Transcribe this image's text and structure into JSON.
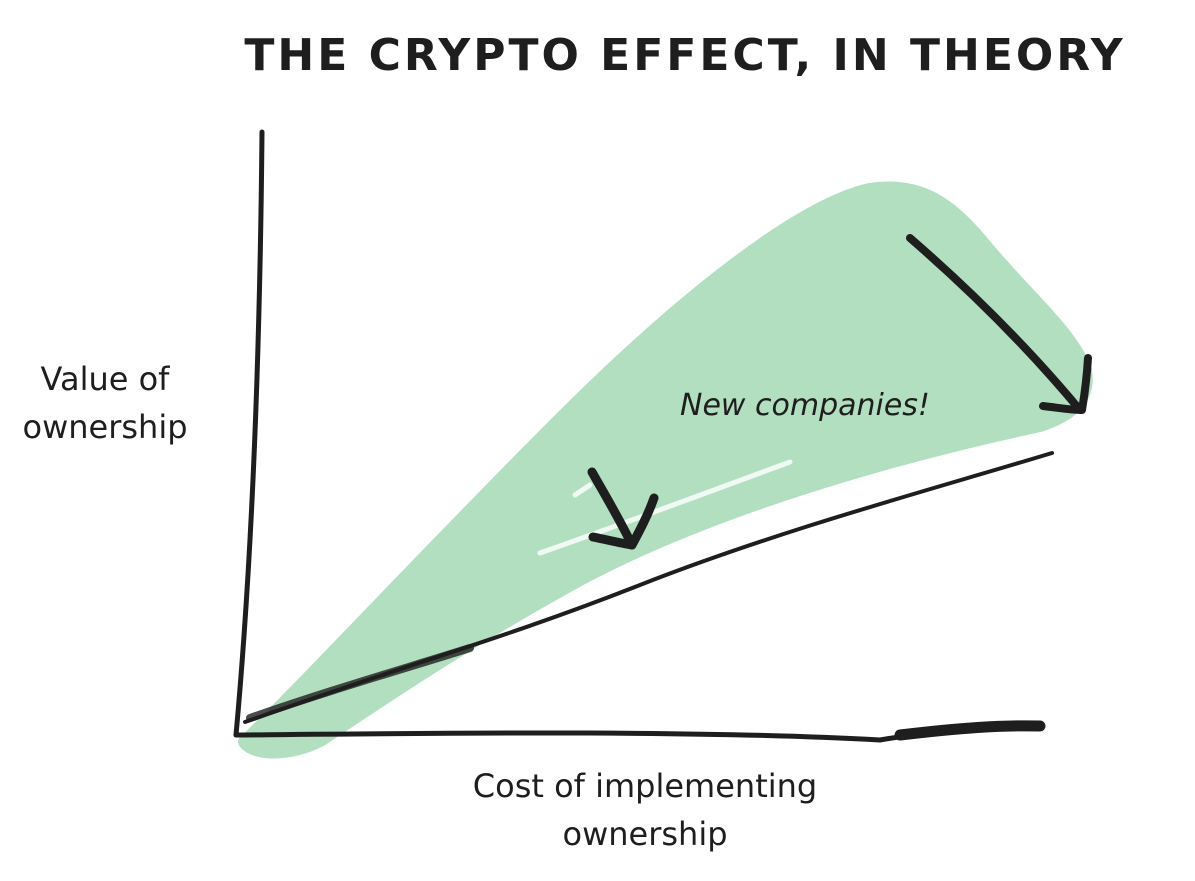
{
  "header": {
    "title": "THE CRYPTO EFFECT, IN THEORY"
  },
  "y_axis_label": [
    "Value of",
    "ownership"
  ],
  "x_axis_label": [
    "Cost of implementing",
    "ownership"
  ],
  "annotation": "New companies!"
}
